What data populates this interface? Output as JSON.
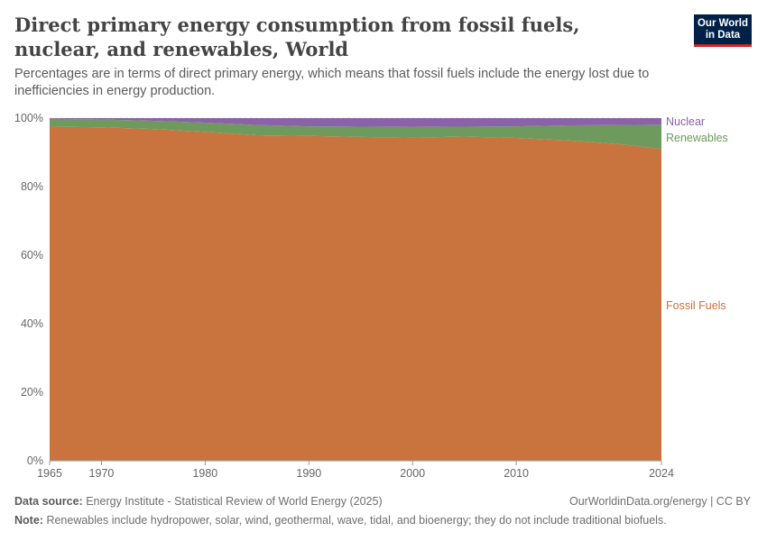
{
  "header": {
    "title": "Direct primary energy consumption from fossil fuels, nuclear, and renewables, World",
    "subtitle": "Percentages are in terms of direct primary energy, which means that fossil fuels include the energy lost due to inefficiencies in energy production.",
    "logo": "Our World in Data"
  },
  "chart_data": {
    "type": "area",
    "stacked": true,
    "x": [
      1965,
      1970,
      1975,
      1980,
      1985,
      1990,
      1995,
      2000,
      2005,
      2010,
      2015,
      2020,
      2024
    ],
    "series": [
      {
        "name": "Fossil Fuels",
        "color": "#c9733f",
        "values": [
          97.5,
          97.3,
          96.8,
          96.0,
          95.0,
          94.8,
          94.5,
          94.3,
          94.6,
          94.2,
          93.5,
          92.4,
          91.0
        ]
      },
      {
        "name": "Renewables",
        "color": "#6e9a5d",
        "values": [
          2.3,
          2.3,
          2.4,
          2.7,
          3.0,
          2.8,
          3.0,
          3.1,
          2.9,
          3.4,
          4.4,
          5.6,
          7.1
        ]
      },
      {
        "name": "Nuclear",
        "color": "#8a62a8",
        "values": [
          0.2,
          0.4,
          0.8,
          1.3,
          2.0,
          2.4,
          2.5,
          2.6,
          2.5,
          2.4,
          2.1,
          2.0,
          1.9
        ]
      }
    ],
    "ylim": [
      0,
      100
    ],
    "yticks": [
      "0%",
      "20%",
      "40%",
      "60%",
      "80%",
      "100%"
    ],
    "xticks": [
      "1965",
      "1970",
      "1980",
      "1990",
      "2000",
      "2010",
      "2024"
    ],
    "grid": "horizontal dashed",
    "legend": "right, inline labels"
  },
  "footer": {
    "source_label": "Data source:",
    "source": "Energy Institute - Statistical Review of World Energy (2025)",
    "credit": "OurWorldinData.org/energy | CC BY",
    "note_label": "Note:",
    "note": "Renewables include hydropower, solar, wind, geothermal, wave, tidal, and bioenergy; they do not include traditional biofuels."
  }
}
